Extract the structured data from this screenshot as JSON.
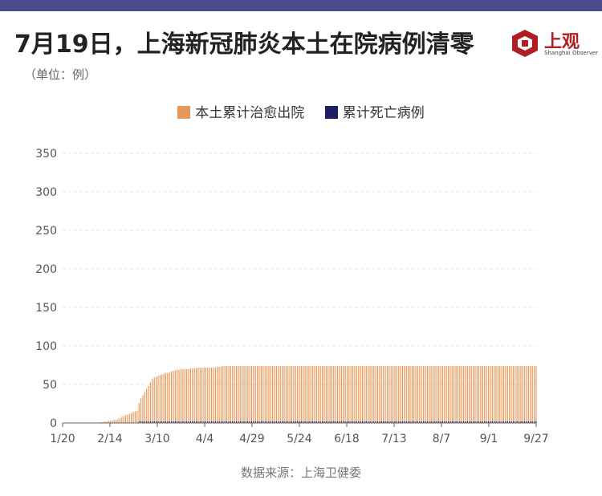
{
  "header": {
    "title": "7月19日，上海新冠肺炎本土在院病例清零",
    "unit_note": "（单位：例）",
    "bar_color": "#4a4a8c"
  },
  "logo": {
    "text": "上观",
    "subtitle": "Shanghai Observer",
    "color": "#b01e23"
  },
  "source": "数据来源：上海卫健委",
  "chart_data": {
    "type": "bar",
    "stacked": false,
    "x_ticks": [
      "1/20",
      "2/14",
      "3/10",
      "4/4",
      "4/29",
      "5/24",
      "6/18",
      "7/13",
      "8/7",
      "9/1",
      "9/27"
    ],
    "ylim": [
      0,
      350
    ],
    "y_ticks": [
      0,
      50,
      100,
      150,
      200,
      250,
      300,
      350
    ],
    "grid": true,
    "legend_position": "top-center",
    "categories_start": "2020-01-20",
    "categories_end": "2020-09-27",
    "series": [
      {
        "name": "本土累计治愈出院",
        "color": "#e8995a",
        "values": [
          0,
          0,
          0,
          0,
          0,
          0,
          0,
          0,
          0,
          0,
          0,
          0,
          0,
          0,
          0,
          0,
          0,
          0,
          0,
          0,
          1,
          1,
          2,
          2,
          3,
          3,
          3,
          4,
          4,
          5,
          6,
          8,
          9,
          10,
          11,
          12,
          13,
          14,
          15,
          16,
          26,
          32,
          36,
          40,
          44,
          48,
          53,
          57,
          59,
          60,
          61,
          62,
          63,
          64,
          65,
          65,
          66,
          67,
          68,
          68,
          69,
          69,
          70,
          70,
          70,
          70,
          70,
          71,
          71,
          71,
          71,
          72,
          72,
          72,
          72,
          72,
          72,
          72,
          72,
          72,
          72,
          73,
          73,
          73,
          74,
          74,
          74,
          74,
          74,
          74,
          74,
          74,
          74,
          74,
          74,
          74,
          74,
          74,
          74,
          74,
          74,
          74,
          74,
          74,
          74,
          74,
          74,
          74,
          74,
          74,
          74,
          74,
          74,
          74,
          74,
          74,
          74,
          74,
          74,
          74,
          74,
          74,
          74,
          74,
          74,
          74,
          74,
          74,
          74,
          74,
          74,
          74,
          74,
          74,
          74,
          74,
          74,
          74,
          74,
          74,
          74,
          74,
          74,
          74,
          74,
          74,
          74,
          74,
          74,
          74,
          74,
          74,
          74,
          74,
          74,
          74,
          74,
          74,
          74,
          74,
          74,
          74,
          74,
          74,
          74,
          74,
          74,
          74,
          74,
          74,
          74,
          74,
          74,
          74,
          74,
          74,
          74,
          74,
          74,
          74,
          74,
          74,
          74,
          74,
          74,
          74,
          74,
          74,
          74,
          74,
          74,
          74,
          74,
          74,
          74,
          74,
          74,
          74,
          74,
          74,
          74,
          74,
          74,
          74,
          74,
          74,
          74,
          74,
          74,
          74,
          74,
          74,
          74,
          74,
          74,
          74,
          74,
          74,
          74,
          74,
          74,
          74,
          74,
          74,
          74,
          74,
          74,
          74,
          74,
          74,
          74,
          74,
          74,
          74,
          74,
          74,
          74,
          74,
          74,
          74,
          74,
          74,
          74,
          74,
          74,
          74,
          74,
          74,
          74
        ]
      },
      {
        "name": "累计死亡病例",
        "color": "#1f1f66",
        "values": [
          0,
          0,
          0,
          0,
          0,
          0,
          0,
          0,
          0,
          0,
          0,
          0,
          0,
          0,
          0,
          0,
          0,
          0,
          0,
          0,
          0,
          0,
          0,
          0,
          0,
          0,
          0,
          0,
          0,
          0,
          0,
          0,
          0,
          0,
          0,
          0,
          0,
          0,
          0,
          0,
          1,
          1,
          1,
          1,
          1,
          1,
          1,
          1,
          1,
          1,
          1,
          1,
          1,
          1,
          1,
          1,
          1,
          1,
          1,
          1,
          1,
          1,
          1,
          1,
          1,
          1,
          1,
          1,
          1,
          1,
          1,
          1,
          1,
          1,
          1,
          1,
          1,
          1,
          1,
          1,
          1,
          1,
          1,
          1,
          1,
          1,
          1,
          1,
          1,
          1,
          1,
          1,
          1,
          1,
          1,
          1,
          1,
          1,
          1,
          1,
          1,
          1,
          1,
          1,
          1,
          1,
          1,
          1,
          1,
          1,
          1,
          1,
          1,
          1,
          1,
          1,
          1,
          1,
          1,
          1,
          1,
          1,
          1,
          1,
          1,
          1,
          1,
          1,
          1,
          1,
          1,
          1,
          1,
          1,
          1,
          1,
          1,
          1,
          1,
          1,
          1,
          1,
          1,
          1,
          1,
          1,
          1,
          1,
          1,
          1,
          1,
          1,
          1,
          1,
          1,
          1,
          1,
          1,
          1,
          1,
          1,
          1,
          1,
          1,
          1,
          1,
          1,
          1,
          1,
          1,
          1,
          1,
          1,
          1,
          1,
          1,
          1,
          1,
          1,
          1,
          1,
          1,
          1,
          1,
          1,
          1,
          1,
          1,
          1,
          1,
          1,
          1,
          1,
          1,
          1,
          1,
          1,
          1,
          1,
          1,
          1,
          1,
          1,
          1,
          1,
          1,
          1,
          1,
          1,
          1,
          1,
          1,
          1,
          1,
          1,
          1,
          1,
          1,
          1,
          1,
          1,
          1,
          1,
          1,
          1,
          1,
          1,
          1,
          1,
          1,
          1,
          1,
          1,
          1,
          1,
          1,
          1,
          1,
          1,
          1,
          1,
          1,
          1,
          1,
          1,
          1,
          1,
          1,
          1,
          1,
          1,
          1,
          1,
          1,
          1,
          1
        ]
      }
    ]
  }
}
